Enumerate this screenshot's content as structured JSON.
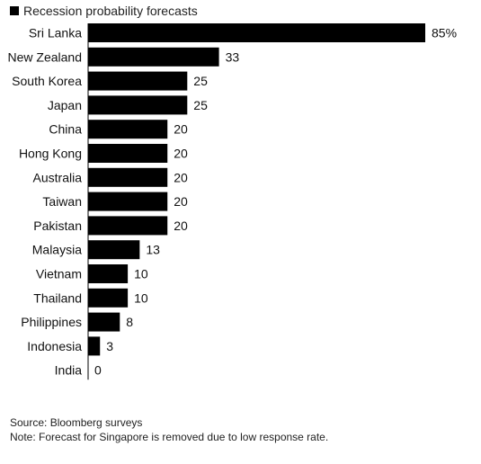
{
  "chart_data": {
    "type": "bar",
    "orientation": "horizontal",
    "legend": {
      "label": "Recession probability forecasts",
      "color": "#000000",
      "position": "top-left"
    },
    "categories": [
      "Sri Lanka",
      "New Zealand",
      "South Korea",
      "Japan",
      "China",
      "Hong Kong",
      "Australia",
      "Taiwan",
      "Pakistan",
      "Malaysia",
      "Vietnam",
      "Thailand",
      "Philippines",
      "Indonesia",
      "India"
    ],
    "series": [
      {
        "name": "Recession probability forecasts",
        "values": [
          85,
          33,
          25,
          25,
          20,
          20,
          20,
          20,
          20,
          13,
          10,
          10,
          8,
          3,
          0
        ]
      }
    ],
    "data_labels": [
      "85%",
      "33",
      "25",
      "25",
      "20",
      "20",
      "20",
      "20",
      "20",
      "13",
      "10",
      "10",
      "8",
      "3",
      "0"
    ],
    "bar_color": "#000000",
    "xlim": [
      0,
      85
    ],
    "grid": false
  },
  "footer": {
    "source": "Source: Bloomberg surveys",
    "note": "Note: Forecast for Singapore is removed due to low response rate."
  }
}
